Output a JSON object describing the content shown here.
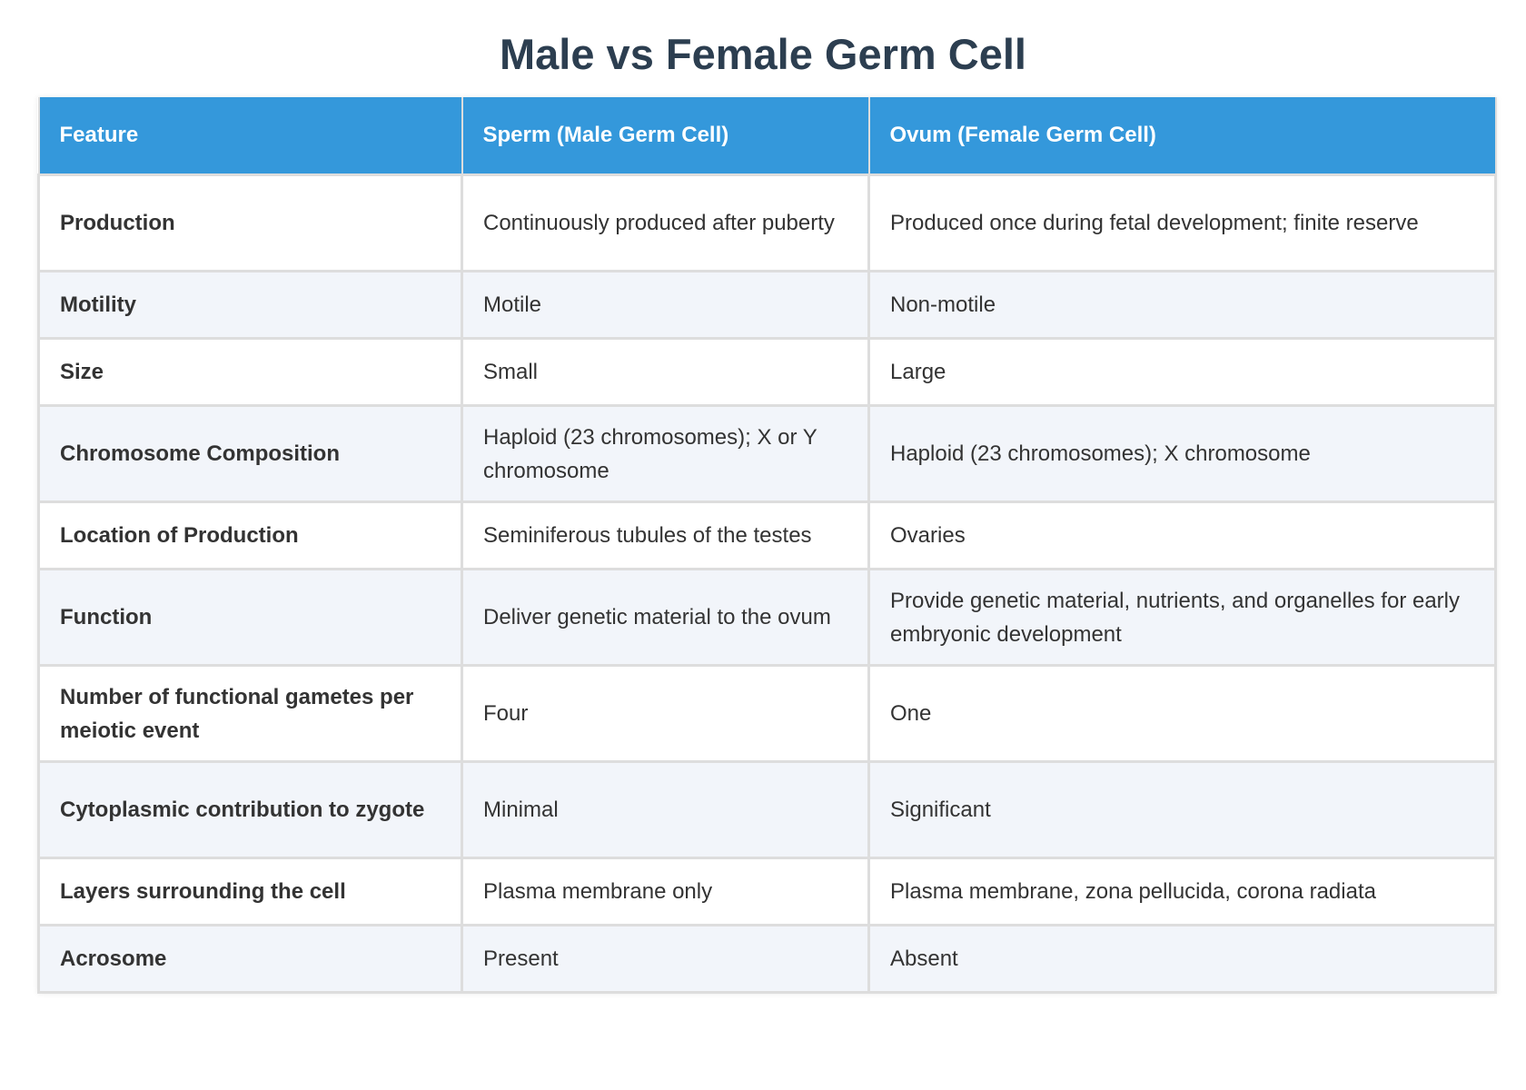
{
  "title": "Male vs Female Germ Cell",
  "table": {
    "headers": [
      "Feature",
      "Sperm (Male Germ Cell)",
      "Ovum (Female Germ Cell)"
    ],
    "rows": [
      {
        "feature": "Production",
        "sperm": "Continuously produced after puberty",
        "ovum": "Produced once during fetal development; finite reserve"
      },
      {
        "feature": "Motility",
        "sperm": "Motile",
        "ovum": "Non-motile"
      },
      {
        "feature": "Size",
        "sperm": "Small",
        "ovum": "Large"
      },
      {
        "feature": "Chromosome Composition",
        "sperm": "Haploid (23 chromosomes); X or Y chromosome",
        "ovum": "Haploid (23 chromosomes); X chromosome"
      },
      {
        "feature": "Location of Production",
        "sperm": "Seminiferous tubules of the testes",
        "ovum": "Ovaries"
      },
      {
        "feature": "Function",
        "sperm": "Deliver genetic material to the ovum",
        "ovum": "Provide genetic material, nutrients, and organelles for early embryonic development"
      },
      {
        "feature": "Number of functional gametes per meiotic event",
        "sperm": "Four",
        "ovum": "One"
      },
      {
        "feature": "Cytoplasmic contribution to zygote",
        "sperm": "Minimal",
        "ovum": "Significant"
      },
      {
        "feature": "Layers surrounding the cell",
        "sperm": "Plasma membrane only",
        "ovum": "Plasma membrane, zona pellucida, corona radiata"
      },
      {
        "feature": "Acrosome",
        "sperm": "Present",
        "ovum": "Absent"
      }
    ]
  },
  "colors": {
    "header_bg": "#3498db",
    "title": "#2c3e50",
    "row_alt": "#f2f5fa"
  }
}
